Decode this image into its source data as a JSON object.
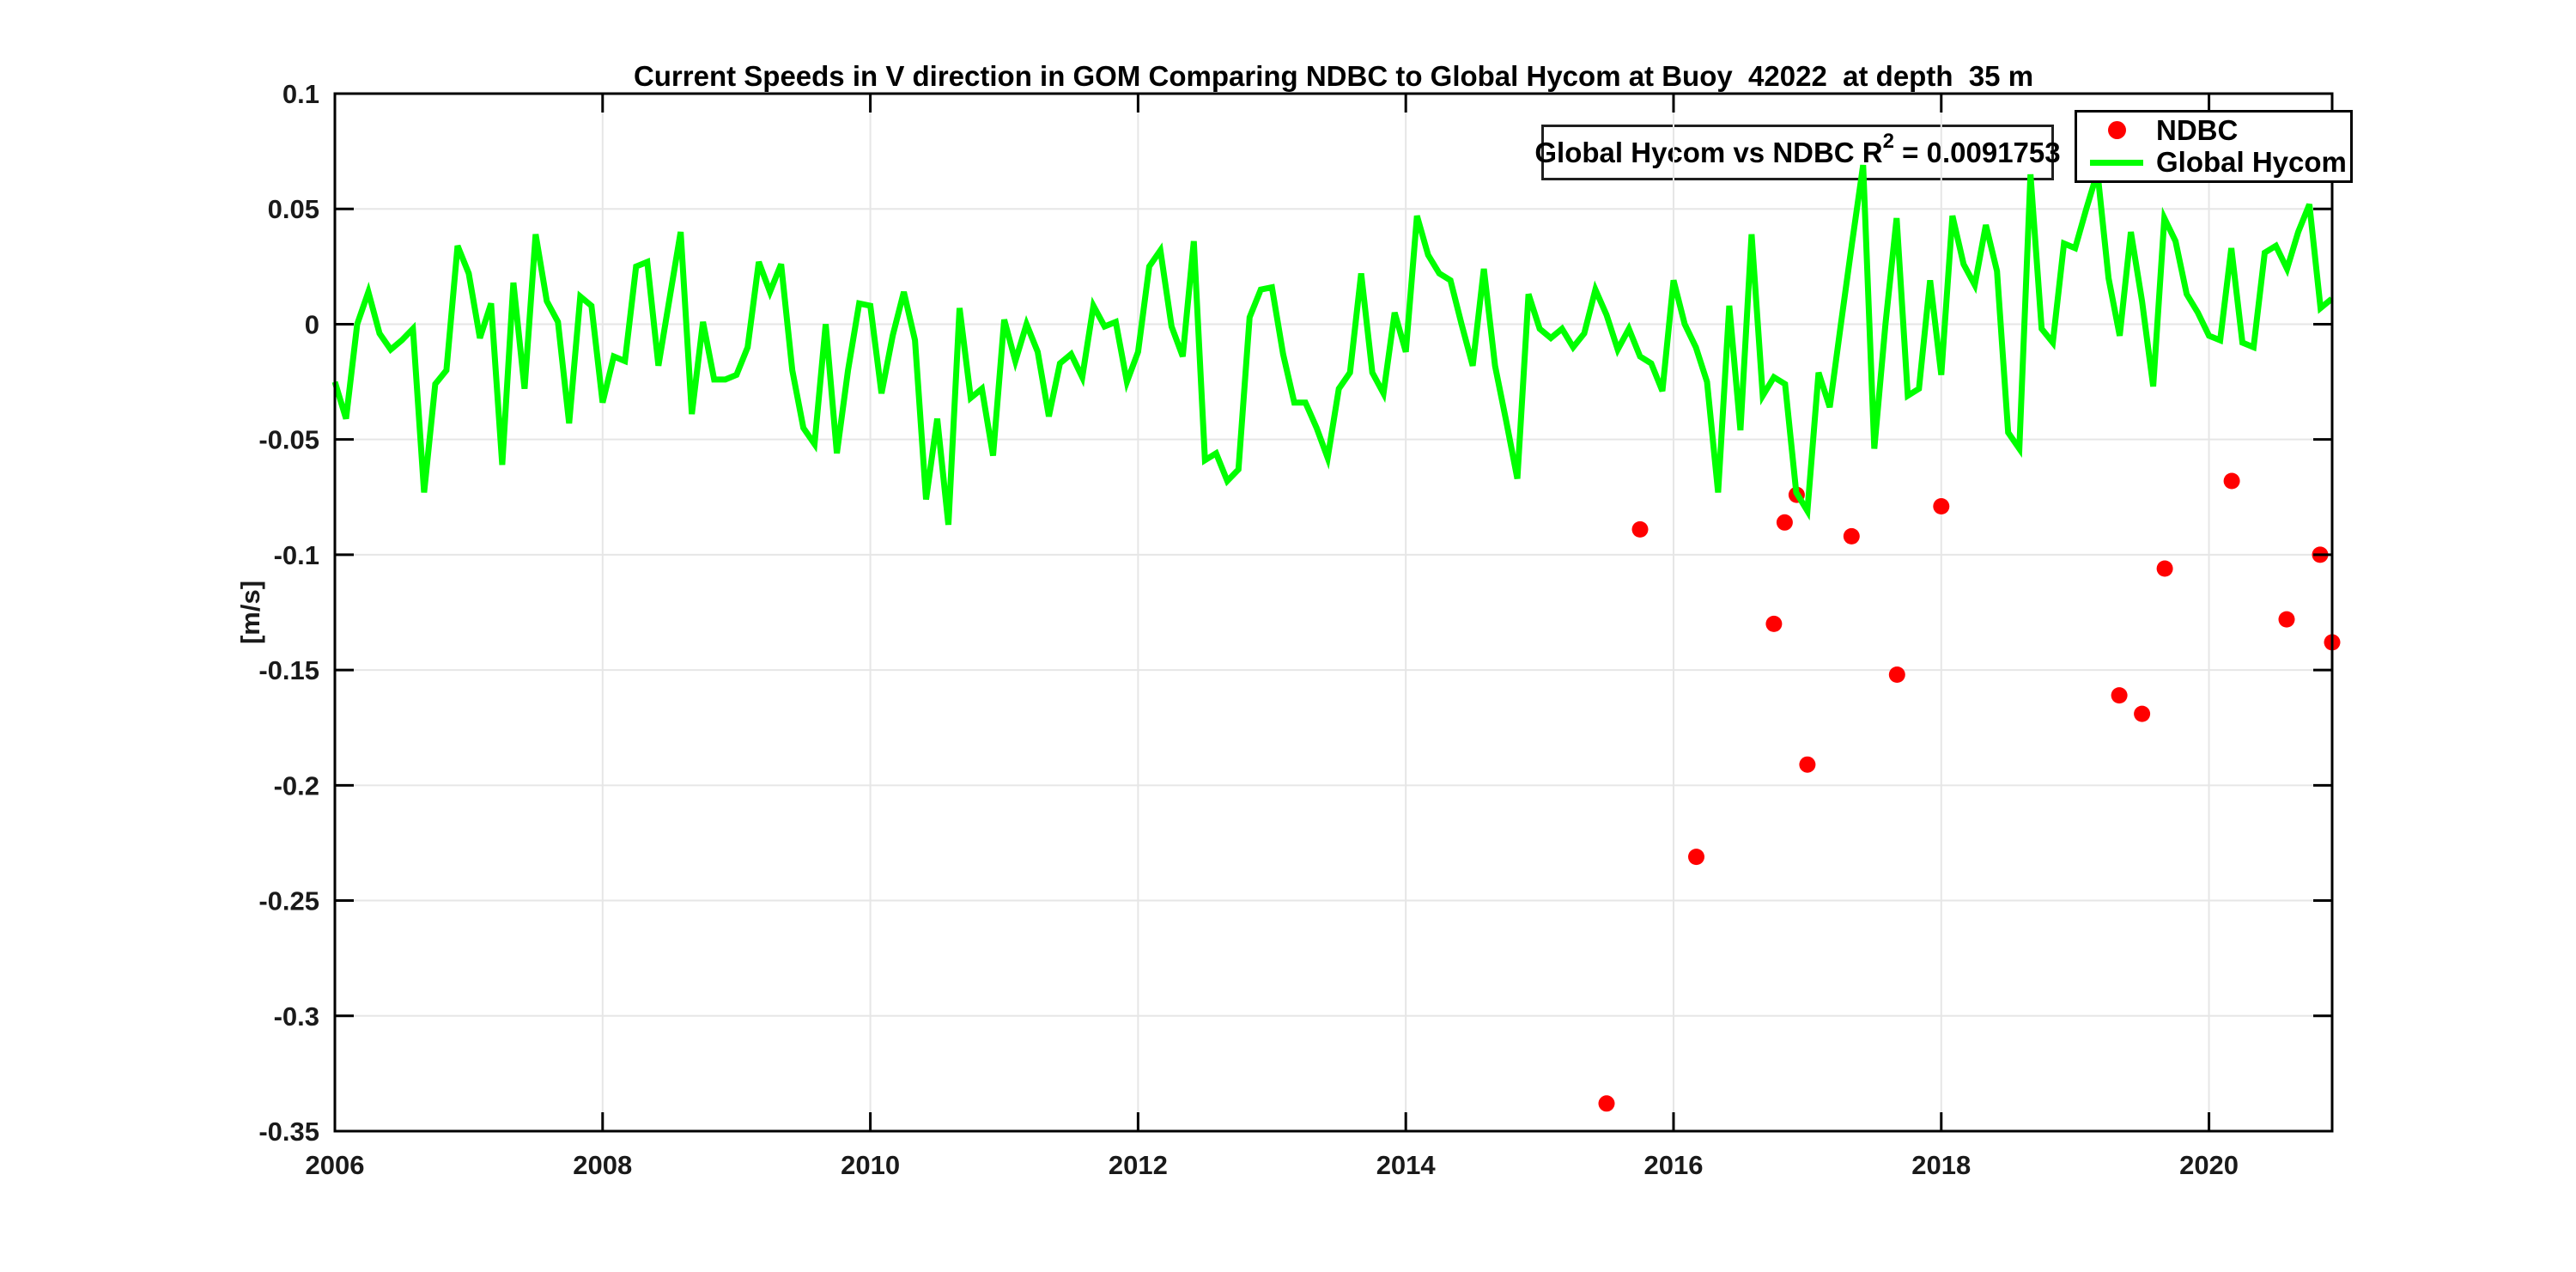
{
  "title": "Current Speeds in V direction in GOM Comparing NDBC to Global Hycom at Buoy  42022  at depth  35 m",
  "ylabel": "[m/s]",
  "annotation": {
    "prefix": "Global Hycom vs NDBC R",
    "sup": "2",
    "suffix": " = 0.0091753"
  },
  "legend": {
    "items": [
      {
        "label": "NDBC",
        "marker": "dot",
        "color": "#ff0000"
      },
      {
        "label": "Global Hycom",
        "marker": "line",
        "color": "#00ff00"
      }
    ]
  },
  "colors": {
    "ndbc": "#ff0000",
    "hycom": "#00ff00",
    "grid": "#e6e6e6",
    "axis": "#000000",
    "background": "#ffffff"
  },
  "chart_data": {
    "type": "line",
    "title": "Current Speeds in V direction in GOM Comparing NDBC to Global Hycom at Buoy 42022 at depth 35 m",
    "xlabel": "",
    "ylabel": "[m/s]",
    "xlim": [
      2006,
      2020.92
    ],
    "ylim": [
      -0.35,
      0.1
    ],
    "grid": true,
    "legend_position": "top-right",
    "annotation_text": "Global Hycom vs NDBC R2 = 0.0091753",
    "x_ticks": [
      2006,
      2008,
      2010,
      2012,
      2014,
      2016,
      2018,
      2020
    ],
    "x_tick_labels": [
      "2006",
      "2008",
      "2010",
      "2012",
      "2014",
      "2016",
      "2018",
      "2020"
    ],
    "y_ticks": [
      0.1,
      0.05,
      0,
      -0.05,
      -0.1,
      -0.15,
      -0.2,
      -0.25,
      -0.3,
      -0.35
    ],
    "y_tick_labels": [
      "0.1",
      "0.05",
      "0",
      "-0.05",
      "-0.1",
      "-0.15",
      "-0.2",
      "-0.25",
      "-0.3",
      "-0.35"
    ],
    "series": [
      {
        "name": "NDBC",
        "type": "scatter",
        "color": "#ff0000",
        "marker_radius": 9.5,
        "x": [
          2015.5,
          2015.75,
          2016.17,
          2016.75,
          2016.83,
          2016.92,
          2017.0,
          2017.33,
          2017.67,
          2018.0,
          2019.33,
          2019.5,
          2019.67,
          2020.17,
          2020.58,
          2020.83,
          2020.92
        ],
        "y": [
          -0.338,
          -0.089,
          -0.231,
          -0.13,
          -0.086,
          -0.074,
          -0.191,
          -0.092,
          -0.152,
          -0.079,
          -0.161,
          -0.169,
          -0.106,
          -0.068,
          -0.128,
          -0.1,
          -0.138
        ]
      },
      {
        "name": "Global Hycom",
        "type": "line",
        "color": "#00ff00",
        "line_width": 7,
        "x_start": 2006.0,
        "x_step": 0.0833333,
        "y": [
          -0.025,
          -0.041,
          0.0,
          0.014,
          -0.004,
          -0.011,
          -0.007,
          -0.002,
          -0.073,
          -0.026,
          -0.02,
          0.034,
          0.022,
          -0.006,
          0.009,
          -0.061,
          0.018,
          -0.028,
          0.039,
          0.01,
          0.001,
          -0.043,
          0.012,
          0.008,
          -0.034,
          -0.014,
          -0.016,
          0.025,
          0.027,
          -0.018,
          0.011,
          0.04,
          -0.039,
          0.001,
          -0.024,
          -0.024,
          -0.022,
          -0.01,
          0.027,
          0.014,
          0.026,
          -0.02,
          -0.045,
          -0.052,
          0.0,
          -0.056,
          -0.02,
          0.009,
          0.008,
          -0.03,
          -0.005,
          0.014,
          -0.007,
          -0.076,
          -0.041,
          -0.087,
          0.007,
          -0.032,
          -0.028,
          -0.057,
          0.002,
          -0.016,
          0.0,
          -0.012,
          -0.04,
          -0.017,
          -0.013,
          -0.023,
          0.008,
          -0.001,
          0.001,
          -0.025,
          -0.012,
          0.025,
          0.032,
          -0.001,
          -0.014,
          0.036,
          -0.059,
          -0.056,
          -0.068,
          -0.063,
          0.003,
          0.015,
          0.016,
          -0.013,
          -0.034,
          -0.034,
          -0.045,
          -0.058,
          -0.028,
          -0.021,
          0.022,
          -0.021,
          -0.03,
          0.005,
          -0.012,
          0.047,
          0.03,
          0.022,
          0.019,
          0.0,
          -0.018,
          0.024,
          -0.018,
          -0.042,
          -0.067,
          0.013,
          -0.002,
          -0.006,
          -0.002,
          -0.01,
          -0.004,
          0.015,
          0.004,
          -0.011,
          -0.002,
          -0.014,
          -0.017,
          -0.029,
          0.019,
          0.0,
          -0.01,
          -0.025,
          -0.073,
          0.008,
          -0.046,
          0.039,
          -0.031,
          -0.023,
          -0.026,
          -0.073,
          -0.081,
          -0.021,
          -0.036,
          0.0,
          0.035,
          0.069,
          -0.054,
          0.0,
          0.046,
          -0.031,
          -0.028,
          0.019,
          -0.022,
          0.047,
          0.026,
          0.017,
          0.043,
          0.023,
          -0.047,
          -0.054,
          0.065,
          -0.002,
          -0.008,
          0.035,
          0.033,
          0.05,
          0.066,
          0.02,
          -0.005,
          0.04,
          0.01,
          -0.027,
          0.046,
          0.036,
          0.013,
          0.005,
          -0.005,
          -0.007,
          0.033,
          -0.008,
          -0.01,
          0.031,
          0.034,
          0.024,
          0.04,
          0.052,
          0.007,
          0.011
        ]
      }
    ]
  }
}
